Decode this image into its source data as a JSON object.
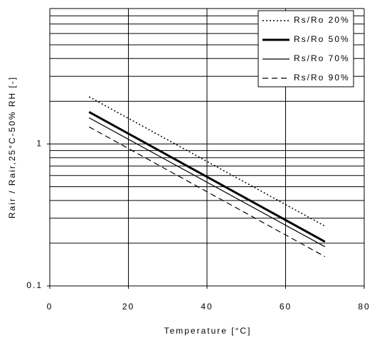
{
  "chart_data": {
    "type": "line",
    "y_label": "Rair / Rair,25°C-50% RH [-]",
    "x_label": "Temperature [°C]",
    "x": [
      10,
      70
    ],
    "series": [
      {
        "name": "Rs/Ro 20%",
        "color": "#000000",
        "style": "dotted",
        "values": [
          2.15,
          0.264
        ]
      },
      {
        "name": "Rs/Ro 50%",
        "color": "#000000",
        "style": "thick",
        "values": [
          1.68,
          0.205
        ]
      },
      {
        "name": "Rs/Ro 70%",
        "color": "#000000",
        "style": "solid",
        "values": [
          1.53,
          0.189
        ]
      },
      {
        "name": "Rs/Ro 90%",
        "color": "#000000",
        "style": "dashed",
        "values": [
          1.32,
          0.161
        ]
      }
    ],
    "xlim": [
      0,
      80
    ],
    "xticks": [
      0,
      20,
      40,
      60,
      80
    ],
    "ylim": [
      0.1,
      9
    ],
    "yticks": [
      0.1,
      1
    ],
    "minor_grid": [
      0.2,
      0.3,
      0.4,
      0.5,
      0.6,
      0.7,
      0.8,
      0.9,
      2,
      3,
      4,
      5,
      6,
      7,
      8,
      9
    ],
    "log_y": true,
    "grid": true,
    "legend": "top-right"
  }
}
